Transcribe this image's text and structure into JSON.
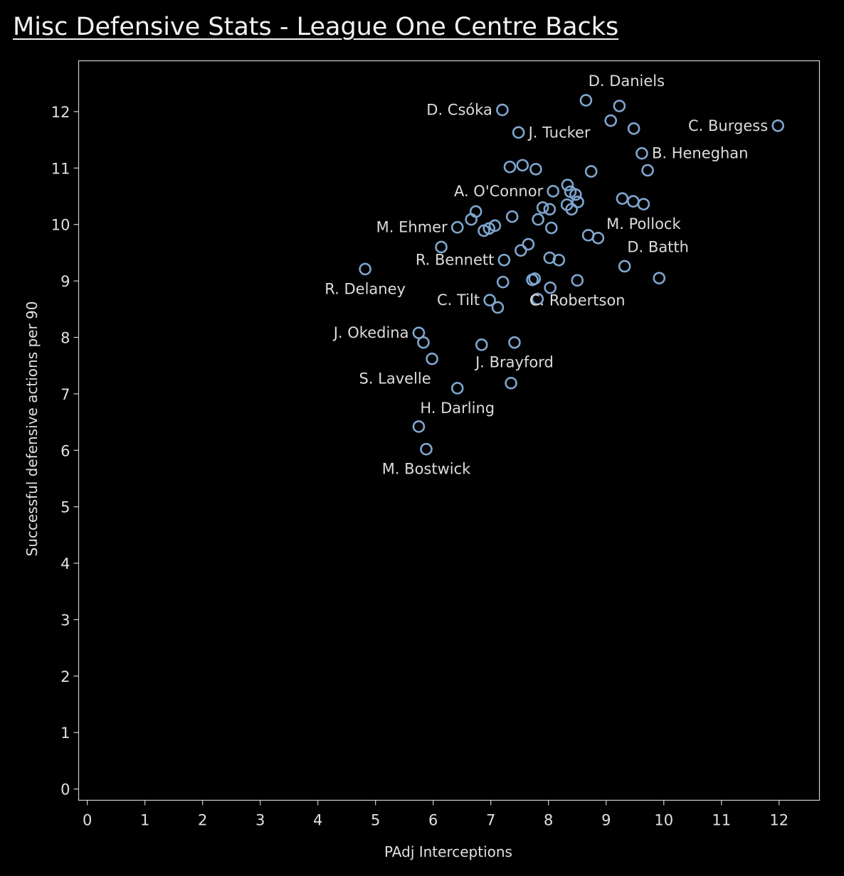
{
  "chart_data": {
    "type": "scatter",
    "title": "Misc Defensive Stats - League One Centre Backs",
    "xlabel": "PAdj Interceptions",
    "ylabel": "Successful defensive actions per 90",
    "xlim": [
      -0.15,
      12.7
    ],
    "ylim": [
      -0.2,
      12.9
    ],
    "xticks": [
      "0",
      "1",
      "2",
      "3",
      "4",
      "5",
      "6",
      "7",
      "8",
      "9",
      "10",
      "11",
      "12"
    ],
    "yticks": [
      "0",
      "1",
      "2",
      "3",
      "4",
      "5",
      "6",
      "7",
      "8",
      "9",
      "10",
      "11",
      "12"
    ],
    "marker_color": "#7fa6cf",
    "grid": false,
    "points": [
      {
        "x": 8.65,
        "y": 12.2,
        "label": "D. Daniels",
        "pos": "top"
      },
      {
        "x": 9.23,
        "y": 12.1,
        "label": "",
        "pos": ""
      },
      {
        "x": 7.2,
        "y": 12.03,
        "label": "D. Csóka",
        "pos": "left"
      },
      {
        "x": 9.08,
        "y": 11.84,
        "label": "",
        "pos": ""
      },
      {
        "x": 11.98,
        "y": 11.75,
        "label": "C. Burgess",
        "pos": "left"
      },
      {
        "x": 9.48,
        "y": 11.7,
        "label": "",
        "pos": ""
      },
      {
        "x": 7.48,
        "y": 11.63,
        "label": "J. Tucker",
        "pos": "right"
      },
      {
        "x": 9.62,
        "y": 11.26,
        "label": "B. Heneghan",
        "pos": "right"
      },
      {
        "x": 7.33,
        "y": 11.02,
        "label": "",
        "pos": ""
      },
      {
        "x": 7.55,
        "y": 11.05,
        "label": "",
        "pos": ""
      },
      {
        "x": 7.78,
        "y": 10.98,
        "label": "",
        "pos": ""
      },
      {
        "x": 9.72,
        "y": 10.96,
        "label": "",
        "pos": ""
      },
      {
        "x": 8.74,
        "y": 10.94,
        "label": "",
        "pos": ""
      },
      {
        "x": 8.33,
        "y": 10.7,
        "label": "",
        "pos": ""
      },
      {
        "x": 8.08,
        "y": 10.59,
        "label": "A. O'Connor",
        "pos": "left"
      },
      {
        "x": 8.38,
        "y": 10.58,
        "label": "",
        "pos": ""
      },
      {
        "x": 8.47,
        "y": 10.53,
        "label": "",
        "pos": ""
      },
      {
        "x": 9.28,
        "y": 10.46,
        "label": "",
        "pos": ""
      },
      {
        "x": 9.47,
        "y": 10.41,
        "label": "",
        "pos": ""
      },
      {
        "x": 8.51,
        "y": 10.4,
        "label": "",
        "pos": ""
      },
      {
        "x": 9.65,
        "y": 10.36,
        "label": "M. Pollock",
        "pos": "below"
      },
      {
        "x": 8.32,
        "y": 10.35,
        "label": "",
        "pos": ""
      },
      {
        "x": 7.9,
        "y": 10.3,
        "label": "",
        "pos": ""
      },
      {
        "x": 8.02,
        "y": 10.27,
        "label": "",
        "pos": ""
      },
      {
        "x": 8.4,
        "y": 10.27,
        "label": "",
        "pos": ""
      },
      {
        "x": 6.74,
        "y": 10.23,
        "label": "",
        "pos": ""
      },
      {
        "x": 7.37,
        "y": 10.14,
        "label": "",
        "pos": ""
      },
      {
        "x": 6.66,
        "y": 10.09,
        "label": "",
        "pos": ""
      },
      {
        "x": 7.82,
        "y": 10.09,
        "label": "",
        "pos": ""
      },
      {
        "x": 7.07,
        "y": 9.98,
        "label": "",
        "pos": ""
      },
      {
        "x": 6.42,
        "y": 9.95,
        "label": "M. Ehmer",
        "pos": "left"
      },
      {
        "x": 8.05,
        "y": 9.94,
        "label": "",
        "pos": ""
      },
      {
        "x": 6.97,
        "y": 9.93,
        "label": "",
        "pos": ""
      },
      {
        "x": 6.88,
        "y": 9.89,
        "label": "",
        "pos": ""
      },
      {
        "x": 8.69,
        "y": 9.81,
        "label": "",
        "pos": ""
      },
      {
        "x": 8.86,
        "y": 9.76,
        "label": "",
        "pos": ""
      },
      {
        "x": 7.65,
        "y": 9.65,
        "label": "",
        "pos": ""
      },
      {
        "x": 6.14,
        "y": 9.6,
        "label": "",
        "pos": ""
      },
      {
        "x": 7.52,
        "y": 9.54,
        "label": "",
        "pos": ""
      },
      {
        "x": 8.02,
        "y": 9.41,
        "label": "",
        "pos": ""
      },
      {
        "x": 8.18,
        "y": 9.37,
        "label": "",
        "pos": ""
      },
      {
        "x": 7.23,
        "y": 9.37,
        "label": "R. Bennett",
        "pos": "left"
      },
      {
        "x": 9.32,
        "y": 9.26,
        "label": "D. Batth",
        "pos": "above"
      },
      {
        "x": 4.82,
        "y": 9.21,
        "label": "R. Delaney",
        "pos": "below"
      },
      {
        "x": 9.92,
        "y": 9.05,
        "label": "",
        "pos": ""
      },
      {
        "x": 7.72,
        "y": 9.02,
        "label": "",
        "pos": ""
      },
      {
        "x": 7.76,
        "y": 9.04,
        "label": "",
        "pos": ""
      },
      {
        "x": 8.5,
        "y": 9.01,
        "label": "C. Robertson",
        "pos": "below"
      },
      {
        "x": 7.21,
        "y": 8.98,
        "label": "",
        "pos": ""
      },
      {
        "x": 8.03,
        "y": 8.88,
        "label": "",
        "pos": ""
      },
      {
        "x": 7.81,
        "y": 8.68,
        "label": "",
        "pos": ""
      },
      {
        "x": 6.98,
        "y": 8.66,
        "label": "C. Tilt",
        "pos": "left"
      },
      {
        "x": 7.12,
        "y": 8.53,
        "label": "",
        "pos": ""
      },
      {
        "x": 5.75,
        "y": 8.08,
        "label": "J. Okedina",
        "pos": "left"
      },
      {
        "x": 5.83,
        "y": 7.91,
        "label": "",
        "pos": ""
      },
      {
        "x": 7.41,
        "y": 7.91,
        "label": "J. Brayford",
        "pos": "below"
      },
      {
        "x": 6.84,
        "y": 7.87,
        "label": "",
        "pos": ""
      },
      {
        "x": 5.98,
        "y": 7.62,
        "label": "S. Lavelle",
        "pos": "belowleft"
      },
      {
        "x": 7.35,
        "y": 7.19,
        "label": "",
        "pos": ""
      },
      {
        "x": 6.42,
        "y": 7.1,
        "label": "H. Darling",
        "pos": "below"
      },
      {
        "x": 5.75,
        "y": 6.42,
        "label": "",
        "pos": ""
      },
      {
        "x": 5.88,
        "y": 6.02,
        "label": "M. Bostwick",
        "pos": "below"
      }
    ]
  }
}
